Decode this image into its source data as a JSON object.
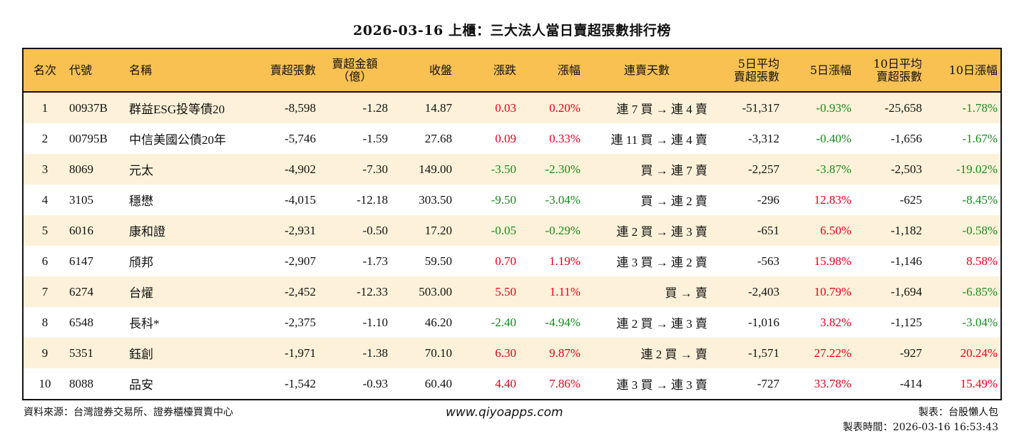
{
  "title": "2026-03-16 上櫃：三大法人當日賣超張數排行榜",
  "columns": [
    "名次",
    "代號",
    "名稱",
    "賣超張數",
    "賣超金額\n（億）",
    "收盤",
    "漲跌",
    "漲幅",
    "連賣天數",
    "5日平均\n賣超張數",
    "5日漲幅",
    "10日平均\n賣超張數",
    "10日漲幅"
  ],
  "colors": {
    "header_bg": "#f8c152",
    "row_alt_bg": "#fdf2d9",
    "up": "#e3001b",
    "down": "#17891c"
  },
  "rows": [
    [
      "1",
      "00937B",
      "群益ESG投等債20",
      "-8,598",
      "-1.28",
      "14.87",
      "0.03",
      "0.20%",
      "連 7 買 → 連 4 賣",
      "-51,317",
      "-0.93%",
      "-25,658",
      "-1.78%"
    ],
    [
      "2",
      "00795B",
      "中信美國公債20年",
      "-5,746",
      "-1.59",
      "27.68",
      "0.09",
      "0.33%",
      "連 11 買 → 連 4 賣",
      "-3,312",
      "-0.40%",
      "-1,656",
      "-1.67%"
    ],
    [
      "3",
      "8069",
      "元太",
      "-4,902",
      "-7.30",
      "149.00",
      "-3.50",
      "-2.30%",
      "買 → 連 7 賣",
      "-2,257",
      "-3.87%",
      "-2,503",
      "-19.02%"
    ],
    [
      "4",
      "3105",
      "穩懋",
      "-4,015",
      "-12.18",
      "303.50",
      "-9.50",
      "-3.04%",
      "買 → 連 2 賣",
      "-296",
      "12.83%",
      "-625",
      "-8.45%"
    ],
    [
      "5",
      "6016",
      "康和證",
      "-2,931",
      "-0.50",
      "17.20",
      "-0.05",
      "-0.29%",
      "連 2 買 → 連 3 賣",
      "-651",
      "6.50%",
      "-1,182",
      "-0.58%"
    ],
    [
      "6",
      "6147",
      "頎邦",
      "-2,907",
      "-1.73",
      "59.50",
      "0.70",
      "1.19%",
      "連 3 買 → 連 2 賣",
      "-563",
      "15.98%",
      "-1,146",
      "8.58%"
    ],
    [
      "7",
      "6274",
      "台燿",
      "-2,452",
      "-12.33",
      "503.00",
      "5.50",
      "1.11%",
      "買 → 賣",
      "-2,403",
      "10.79%",
      "-1,694",
      "-6.85%"
    ],
    [
      "8",
      "6548",
      "長科*",
      "-2,375",
      "-1.10",
      "46.20",
      "-2.40",
      "-4.94%",
      "連 2 買 → 連 3 賣",
      "-1,016",
      "3.82%",
      "-1,125",
      "-3.04%"
    ],
    [
      "9",
      "5351",
      "鈺創",
      "-1,971",
      "-1.38",
      "70.10",
      "6.30",
      "9.87%",
      "連 2 買 → 賣",
      "-1,571",
      "27.22%",
      "-927",
      "20.24%"
    ],
    [
      "10",
      "8088",
      "品安",
      "-1,542",
      "-0.93",
      "60.40",
      "4.40",
      "7.86%",
      "連 3 買 → 連 3 賣",
      "-727",
      "33.78%",
      "-414",
      "15.49%"
    ]
  ],
  "footer": {
    "source": "資料來源：台灣證券交易所、證券櫃檯買賣中心",
    "website": "www.qiyoapps.com",
    "author": "製表：台股懶人包",
    "timestamp": "製表時間：2026-03-16 16:53:43"
  }
}
